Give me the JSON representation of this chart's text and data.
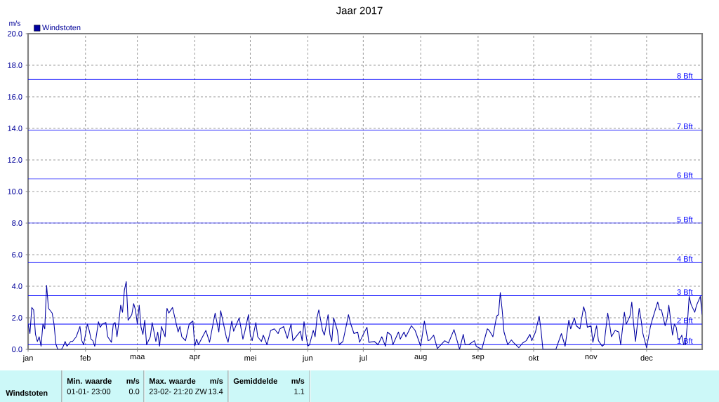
{
  "chart_data": {
    "type": "line",
    "title": "Jaar 2017",
    "ylabel": "m/s",
    "xlim": [
      "2017-01-01",
      "2017-12-31"
    ],
    "ylim": [
      0,
      20
    ],
    "xticks": [
      {
        "value": "2017-01-01",
        "label": "jan"
      },
      {
        "value": "2017-02-01",
        "label": "feb"
      },
      {
        "value": "2017-03-01",
        "label": "maa"
      },
      {
        "value": "2017-04-01",
        "label": "apr"
      },
      {
        "value": "2017-05-01",
        "label": "mei"
      },
      {
        "value": "2017-06-01",
        "label": "jun"
      },
      {
        "value": "2017-07-01",
        "label": "jul"
      },
      {
        "value": "2017-08-01",
        "label": "aug"
      },
      {
        "value": "2017-09-01",
        "label": "sep"
      },
      {
        "value": "2017-10-01",
        "label": "okt"
      },
      {
        "value": "2017-11-01",
        "label": "nov"
      },
      {
        "value": "2017-12-01",
        "label": "dec"
      }
    ],
    "yticks": [
      {
        "value": 0,
        "label": "0.0"
      },
      {
        "value": 2,
        "label": "2.0"
      },
      {
        "value": 4,
        "label": "4.0"
      },
      {
        "value": 6,
        "label": "6.0"
      },
      {
        "value": 8,
        "label": "8.0"
      },
      {
        "value": 10,
        "label": "10.0"
      },
      {
        "value": 12,
        "label": "12.0"
      },
      {
        "value": 14,
        "label": "14.0"
      },
      {
        "value": 16,
        "label": "16.0"
      },
      {
        "value": 18,
        "label": "18.0"
      },
      {
        "value": 20,
        "label": "20.0"
      }
    ],
    "grid": true,
    "legend": "top left",
    "x": [
      "2017-01-01",
      "2017-01-02",
      "2017-01-03",
      "2017-01-04",
      "2017-01-05",
      "2017-01-06",
      "2017-01-07",
      "2017-01-08",
      "2017-01-09",
      "2017-01-10",
      "2017-01-11",
      "2017-01-12",
      "2017-01-14",
      "2017-01-15",
      "2017-01-16",
      "2017-01-17",
      "2017-01-19",
      "2017-01-20",
      "2017-01-21",
      "2017-01-22",
      "2017-01-24",
      "2017-01-25",
      "2017-01-27",
      "2017-01-29",
      "2017-01-30",
      "2017-01-31",
      "2017-02-02",
      "2017-02-03",
      "2017-02-04",
      "2017-02-05",
      "2017-02-06",
      "2017-02-08",
      "2017-02-09",
      "2017-02-10",
      "2017-02-12",
      "2017-02-13",
      "2017-02-15",
      "2017-02-16",
      "2017-02-17",
      "2017-02-18",
      "2017-02-19",
      "2017-02-20",
      "2017-02-21",
      "2017-02-22",
      "2017-02-23",
      "2017-02-24",
      "2017-02-26",
      "2017-02-27",
      "2017-02-28",
      "2017-03-01",
      "2017-03-02",
      "2017-03-03",
      "2017-03-04",
      "2017-03-05",
      "2017-03-06",
      "2017-03-08",
      "2017-03-09",
      "2017-03-11",
      "2017-03-12",
      "2017-03-13",
      "2017-03-14",
      "2017-03-16",
      "2017-03-17",
      "2017-03-18",
      "2017-03-20",
      "2017-03-23",
      "2017-03-24",
      "2017-03-25",
      "2017-03-27",
      "2017-03-29",
      "2017-03-31",
      "2017-04-01",
      "2017-04-02",
      "2017-04-03",
      "2017-04-07",
      "2017-04-09",
      "2017-04-12",
      "2017-04-14",
      "2017-04-15",
      "2017-04-18",
      "2017-04-19",
      "2017-04-21",
      "2017-04-22",
      "2017-04-25",
      "2017-04-27",
      "2017-04-28",
      "2017-04-30",
      "2017-05-01",
      "2017-05-02",
      "2017-05-04",
      "2017-05-05",
      "2017-05-07",
      "2017-05-08",
      "2017-05-10",
      "2017-05-12",
      "2017-05-14",
      "2017-05-16",
      "2017-05-17",
      "2017-05-19",
      "2017-05-21",
      "2017-05-23",
      "2017-05-24",
      "2017-05-28",
      "2017-05-29",
      "2017-05-30",
      "2017-06-01",
      "2017-06-02",
      "2017-06-04",
      "2017-06-05",
      "2017-06-06",
      "2017-06-07",
      "2017-06-09",
      "2017-06-10",
      "2017-06-12",
      "2017-06-13",
      "2017-06-14",
      "2017-06-15",
      "2017-06-17",
      "2017-06-18",
      "2017-06-20",
      "2017-06-22",
      "2017-06-23",
      "2017-06-24",
      "2017-06-26",
      "2017-06-28",
      "2017-06-29",
      "2017-07-01",
      "2017-07-03",
      "2017-07-04",
      "2017-07-07",
      "2017-07-09",
      "2017-07-11",
      "2017-07-13",
      "2017-07-14",
      "2017-07-16",
      "2017-07-17",
      "2017-07-20",
      "2017-07-21",
      "2017-07-23",
      "2017-07-24",
      "2017-07-27",
      "2017-07-29",
      "2017-08-01",
      "2017-08-03",
      "2017-08-05",
      "2017-08-06",
      "2017-08-08",
      "2017-08-10",
      "2017-08-12",
      "2017-08-14",
      "2017-08-16",
      "2017-08-19",
      "2017-08-22",
      "2017-08-24",
      "2017-08-25",
      "2017-08-27",
      "2017-08-30",
      "2017-08-31",
      "2017-09-03",
      "2017-09-06",
      "2017-09-07",
      "2017-09-09",
      "2017-09-11",
      "2017-09-12",
      "2017-09-13",
      "2017-09-14",
      "2017-09-15",
      "2017-09-17",
      "2017-09-19",
      "2017-09-20",
      "2017-09-23",
      "2017-09-25",
      "2017-09-27",
      "2017-09-29",
      "2017-09-30",
      "2017-10-02",
      "2017-10-04",
      "2017-10-05",
      "2017-10-06",
      "2017-10-13",
      "2017-10-16",
      "2017-10-18",
      "2017-10-20",
      "2017-10-21",
      "2017-10-23",
      "2017-10-24",
      "2017-10-26",
      "2017-10-28",
      "2017-10-29",
      "2017-10-30",
      "2017-11-01",
      "2017-11-02",
      "2017-11-04",
      "2017-11-05",
      "2017-11-07",
      "2017-11-08",
      "2017-11-10",
      "2017-11-11",
      "2017-11-12",
      "2017-11-14",
      "2017-11-16",
      "2017-11-17",
      "2017-11-19",
      "2017-11-20",
      "2017-11-22",
      "2017-11-23",
      "2017-11-24",
      "2017-11-25",
      "2017-11-27",
      "2017-11-28",
      "2017-11-29",
      "2017-12-01",
      "2017-12-03",
      "2017-12-04",
      "2017-12-07",
      "2017-12-08",
      "2017-12-09",
      "2017-12-11",
      "2017-12-12",
      "2017-12-13",
      "2017-12-14",
      "2017-12-15",
      "2017-12-16",
      "2017-12-17",
      "2017-12-18",
      "2017-12-19",
      "2017-12-20",
      "2017-12-21",
      "2017-12-22",
      "2017-12-23",
      "2017-12-24",
      "2017-12-25",
      "2017-12-27",
      "2017-12-28",
      "2017-12-30",
      "2017-12-31"
    ],
    "series": [
      {
        "name": "Windstoten",
        "color": "#0000a0",
        "values": [
          1.6,
          1.0,
          2.65,
          2.5,
          0.95,
          0.5,
          0.8,
          0.2,
          1.6,
          1.3,
          4.05,
          2.6,
          2.3,
          1.6,
          0.35,
          0.0,
          0.0,
          0.2,
          0.5,
          0.2,
          0.5,
          0.5,
          0.8,
          1.45,
          0.55,
          0.3,
          1.6,
          1.2,
          0.65,
          0.55,
          0.2,
          1.75,
          1.4,
          1.6,
          1.7,
          0.8,
          0.45,
          1.6,
          1.7,
          0.8,
          1.7,
          2.8,
          2.35,
          3.75,
          4.3,
          1.85,
          2.2,
          2.9,
          2.5,
          1.6,
          2.8,
          1.4,
          0.95,
          1.85,
          0.3,
          0.8,
          1.7,
          0.5,
          1.1,
          0.2,
          1.45,
          0.8,
          2.6,
          2.3,
          2.65,
          1.1,
          1.45,
          0.8,
          0.55,
          1.6,
          1.8,
          0.2,
          0.65,
          0.3,
          1.2,
          0.45,
          2.3,
          1.1,
          2.45,
          0.8,
          0.45,
          1.8,
          1.15,
          2.0,
          0.65,
          1.1,
          2.2,
          0.9,
          0.55,
          1.7,
          0.8,
          0.5,
          0.9,
          0.3,
          1.2,
          1.3,
          1.0,
          1.3,
          1.45,
          0.7,
          1.6,
          0.55,
          1.15,
          0.55,
          1.75,
          0.2,
          0.3,
          1.2,
          0.8,
          2.0,
          2.5,
          1.2,
          0.9,
          2.2,
          0.95,
          0.5,
          2.0,
          1.2,
          0.3,
          0.5,
          1.6,
          2.2,
          1.7,
          1.0,
          1.1,
          0.45,
          0.95,
          1.4,
          0.45,
          0.5,
          0.3,
          0.8,
          0.2,
          1.1,
          0.9,
          0.3,
          1.1,
          0.65,
          1.1,
          0.8,
          1.5,
          1.2,
          0.2,
          1.8,
          0.55,
          0.6,
          0.9,
          0.05,
          0.3,
          0.55,
          0.4,
          1.25,
          0.0,
          0.95,
          0.3,
          0.3,
          0.55,
          0.2,
          0.0,
          1.3,
          1.2,
          0.8,
          2.1,
          2.2,
          3.6,
          2.5,
          1.1,
          0.3,
          0.6,
          0.45,
          0.1,
          0.4,
          0.55,
          0.95,
          0.55,
          1.1,
          2.1,
          1.2,
          0.0,
          0.0,
          1.0,
          0.2,
          1.85,
          1.3,
          2.0,
          1.5,
          1.3,
          2.7,
          2.3,
          1.4,
          1.5,
          0.45,
          1.5,
          0.55,
          0.2,
          0.3,
          2.3,
          1.6,
          0.8,
          1.2,
          1.1,
          0.3,
          2.35,
          1.6,
          2.1,
          3.0,
          1.6,
          0.5,
          2.6,
          1.9,
          1.0,
          0.1,
          1.4,
          1.85,
          3.0,
          2.5,
          2.5,
          1.5,
          1.9,
          2.8,
          1.85,
          0.9,
          1.6,
          1.4,
          0.65,
          0.65,
          0.9,
          0.3,
          0.3,
          1.6,
          3.35,
          2.85,
          2.35,
          2.8,
          3.35,
          2.2
        ]
      }
    ],
    "ref_lines": [
      {
        "axis": "y",
        "value": 0.3,
        "label": "1 Bft",
        "color": "#0000ff"
      },
      {
        "axis": "y",
        "value": 1.6,
        "label": "2 Bft",
        "color": "#0000ff"
      },
      {
        "axis": "y",
        "value": 3.4,
        "label": "3 Bft",
        "color": "#0000ff"
      },
      {
        "axis": "y",
        "value": 5.5,
        "label": "4 Bft",
        "color": "#0000ff"
      },
      {
        "axis": "y",
        "value": 8.0,
        "label": "5 Bft",
        "color": "#0000ff"
      },
      {
        "axis": "y",
        "value": 10.8,
        "label": "6 Bft",
        "color": "#0000ff"
      },
      {
        "axis": "y",
        "value": 13.9,
        "label": "7 Bft",
        "color": "#0000ff"
      },
      {
        "axis": "y",
        "value": 17.1,
        "label": "8 Bft",
        "color": "#0000ff"
      }
    ],
    "annotations": [
      "Windstoten",
      "Min. waarde",
      "m/s",
      "01-01- 23:00",
      "0.0",
      "Max. waarde",
      "m/s",
      "23-02- 21:20 ZW",
      "13.4",
      "Gemiddelde",
      "m/s",
      "1.1"
    ]
  }
}
